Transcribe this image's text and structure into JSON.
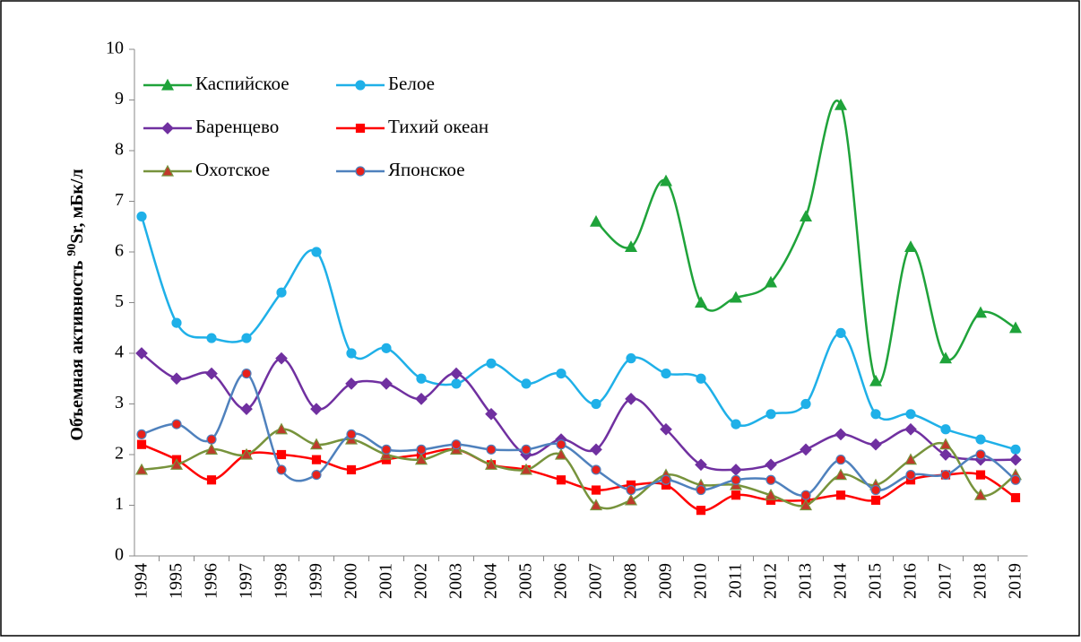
{
  "chart_data": {
    "type": "line",
    "y_label": {
      "prefix": "Объемная  активность  ",
      "superscript": "90",
      "suffix": "Sr,  мБк/л"
    },
    "categories": [
      "1994",
      "1995",
      "1996",
      "1997",
      "1998",
      "1999",
      "2000",
      "2001",
      "2002",
      "2003",
      "2004",
      "2005",
      "2006",
      "2007",
      "2008",
      "2009",
      "2010",
      "2011",
      "2012",
      "2013",
      "2014",
      "2015",
      "2016",
      "2017",
      "2018",
      "2019"
    ],
    "ylim": [
      0,
      10
    ],
    "yticks": [
      0,
      1,
      2,
      3,
      4,
      5,
      6,
      7,
      8,
      9,
      10
    ],
    "grid": false,
    "legend": "upper left",
    "series": [
      {
        "name": "Каспийское",
        "color": "#1fa33a",
        "marker": "triangle",
        "values": [
          null,
          null,
          null,
          null,
          null,
          null,
          null,
          null,
          null,
          null,
          null,
          null,
          null,
          6.6,
          6.1,
          7.4,
          5.0,
          5.1,
          5.4,
          6.7,
          8.9,
          3.45,
          6.1,
          3.9,
          4.8,
          4.5
        ]
      },
      {
        "name": "Белое",
        "color": "#1fb0e8",
        "marker": "circle",
        "values": [
          6.7,
          4.6,
          4.3,
          4.3,
          5.2,
          6.0,
          4.0,
          4.1,
          3.5,
          3.4,
          3.8,
          3.4,
          3.6,
          3.0,
          3.9,
          3.6,
          3.5,
          2.6,
          2.8,
          3.0,
          4.4,
          2.8,
          2.8,
          2.5,
          2.3,
          2.1
        ]
      },
      {
        "name": "Баренцево",
        "color": "#7030a0",
        "marker": "diamond",
        "values": [
          4.0,
          3.5,
          3.6,
          2.9,
          3.9,
          2.9,
          3.4,
          3.4,
          3.1,
          3.6,
          2.8,
          2.0,
          2.3,
          2.1,
          3.1,
          2.5,
          1.8,
          1.7,
          1.8,
          2.1,
          2.4,
          2.2,
          2.5,
          2.0,
          1.9,
          1.9
        ]
      },
      {
        "name": "Тихий океан",
        "color": "#ff0000",
        "marker": "square",
        "values": [
          2.2,
          1.9,
          1.5,
          2.0,
          2.0,
          1.9,
          1.7,
          1.9,
          2.0,
          2.1,
          1.8,
          1.7,
          1.5,
          1.3,
          1.4,
          1.4,
          0.9,
          1.2,
          1.1,
          1.1,
          1.2,
          1.1,
          1.5,
          1.6,
          1.6,
          1.15
        ]
      },
      {
        "name": "Охотское",
        "color": "#77933c",
        "marker": "triangle",
        "marker_fill": "#c0392b",
        "values": [
          1.7,
          1.8,
          2.1,
          2.0,
          2.5,
          2.2,
          2.3,
          2.0,
          1.9,
          2.1,
          1.8,
          1.7,
          2.0,
          1.0,
          1.1,
          1.6,
          1.4,
          1.4,
          1.2,
          1.0,
          1.6,
          1.4,
          1.9,
          2.2,
          1.2,
          1.6
        ]
      },
      {
        "name": "Японское",
        "color": "#4f81bd",
        "marker": "circle",
        "marker_fill": "#e8211b",
        "values": [
          2.4,
          2.6,
          2.3,
          3.6,
          1.7,
          1.6,
          2.4,
          2.1,
          2.1,
          2.2,
          2.1,
          2.1,
          2.2,
          1.7,
          1.3,
          1.5,
          1.3,
          1.5,
          1.5,
          1.2,
          1.9,
          1.3,
          1.6,
          1.6,
          2.0,
          1.5
        ]
      }
    ]
  }
}
